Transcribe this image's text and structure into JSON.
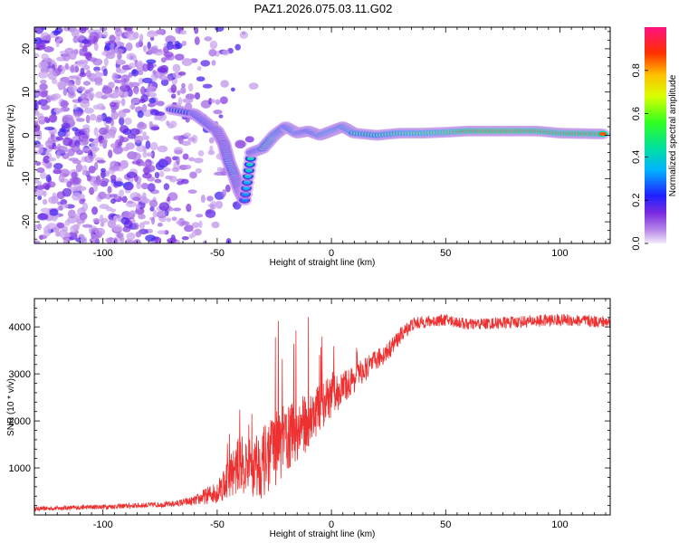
{
  "chart_data": [
    {
      "type": "heatmap",
      "title": "PAZ1.2026.075.03.11.G02",
      "xlabel": "Height of straight line (km)",
      "ylabel": "Frequency (Hz)",
      "xlim": [
        -130,
        122
      ],
      "ylim": [
        -25,
        25
      ],
      "xticks": [
        -100,
        -50,
        0,
        50,
        100
      ],
      "yticks": [
        -20,
        -10,
        0,
        10,
        20
      ],
      "colorbar": {
        "label": "Normalized spectral amplitude",
        "range": [
          0.0,
          1.0
        ],
        "ticks": [
          "0.0",
          "0.2",
          "0.4",
          "0.6",
          "0.8"
        ],
        "tick_values": [
          0.0,
          0.2,
          0.4,
          0.6,
          0.8
        ]
      },
      "ridge": {
        "x": [
          -70,
          -60,
          -55,
          -50,
          -47,
          -45,
          -42,
          -40,
          -38,
          -35,
          -30,
          -25,
          -20,
          -15,
          -10,
          -5,
          0,
          5,
          10,
          20,
          30,
          40,
          50,
          60,
          70,
          80,
          90,
          100,
          110,
          120
        ],
        "freq": [
          6,
          5,
          3,
          1,
          -2,
          -6,
          -10,
          -13,
          -15,
          -4,
          -3,
          0,
          2,
          0.5,
          1,
          0,
          1,
          2,
          0.5,
          0,
          0.5,
          0.5,
          0.7,
          1,
          1,
          1,
          1,
          0.5,
          0.4,
          0.3
        ],
        "amp": [
          0.35,
          0.4,
          0.45,
          0.35,
          0.3,
          0.35,
          0.4,
          0.35,
          0.3,
          0.45,
          0.5,
          0.55,
          0.5,
          0.55,
          0.5,
          0.55,
          0.6,
          0.55,
          0.6,
          0.6,
          0.65,
          0.7,
          0.75,
          0.9,
          0.95,
          0.95,
          0.9,
          0.85,
          0.9,
          0.85
        ]
      },
      "colors": {
        "low": "#7b2be0",
        "high": "#ff0033"
      }
    },
    {
      "type": "line",
      "xlabel": "Height of straight line (km)",
      "ylabel": "SNR (10 * v/v)",
      "xlim": [
        -130,
        122
      ],
      "ylim": [
        0,
        4600
      ],
      "xticks": [
        -100,
        -50,
        0,
        50,
        100
      ],
      "yticks": [
        1000,
        2000,
        3000,
        4000
      ],
      "series": [
        {
          "name": "SNR",
          "color": "#ee3030",
          "envelope_x": [
            -130,
            -110,
            -90,
            -70,
            -60,
            -50,
            -45,
            -40,
            -35,
            -30,
            -25,
            -20,
            -15,
            -10,
            -5,
            0,
            5,
            10,
            15,
            20,
            25,
            30,
            35,
            40,
            50,
            60,
            80,
            100,
            122
          ],
          "envelope_y": [
            130,
            160,
            190,
            230,
            300,
            500,
            800,
            1100,
            1000,
            1100,
            1400,
            1600,
            1800,
            2000,
            2300,
            2500,
            2700,
            2900,
            3100,
            3300,
            3500,
            3800,
            4050,
            4100,
            4150,
            4050,
            4100,
            4150,
            4100
          ],
          "noise": [
            90,
            100,
            110,
            120,
            200,
            500,
            900,
            1200,
            1300,
            1500,
            1600,
            1500,
            1400,
            1200,
            1000,
            900,
            700,
            600,
            500,
            450,
            400,
            350,
            300,
            260,
            250,
            250,
            260,
            260,
            260
          ]
        }
      ]
    }
  ]
}
